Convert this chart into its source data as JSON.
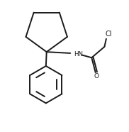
{
  "background_color": "#ffffff",
  "line_color": "#1a1a1a",
  "line_width": 1.4,
  "text_color": "#1a1a1a",
  "fig_width": 1.82,
  "fig_height": 1.86,
  "dpi": 100,
  "xlim": [
    0,
    10
  ],
  "ylim": [
    0,
    10
  ]
}
